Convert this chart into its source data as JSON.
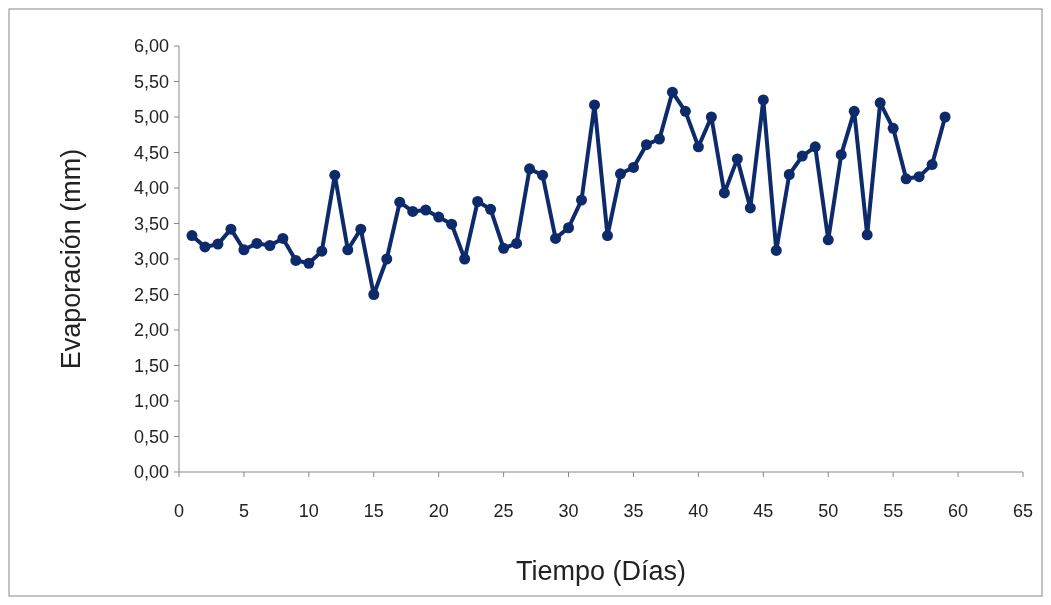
{
  "chart_data": {
    "type": "line",
    "xlabel": "Tiempo (Días)",
    "ylabel": "Evaporación (mm)",
    "x": [
      1,
      2,
      3,
      4,
      5,
      6,
      7,
      8,
      9,
      10,
      11,
      12,
      13,
      14,
      15,
      16,
      17,
      18,
      19,
      20,
      21,
      22,
      23,
      24,
      25,
      26,
      27,
      28,
      29,
      30,
      31,
      32,
      33,
      34,
      35,
      36,
      37,
      38,
      39,
      40,
      41,
      42,
      43,
      44,
      45,
      46,
      47,
      48,
      49,
      50,
      51,
      52,
      53,
      54,
      55,
      56,
      57,
      58,
      59
    ],
    "series": [
      {
        "color": "#0d2a6b",
        "values": [
          3.33,
          3.17,
          3.21,
          3.42,
          3.13,
          3.22,
          3.19,
          3.29,
          2.98,
          2.94,
          3.11,
          4.18,
          3.13,
          3.42,
          2.5,
          3.0,
          3.8,
          3.67,
          3.69,
          3.59,
          3.49,
          3.0,
          3.81,
          3.7,
          3.15,
          3.22,
          4.27,
          4.18,
          3.29,
          3.44,
          3.83,
          5.17,
          3.33,
          4.2,
          4.29,
          4.61,
          4.69,
          5.35,
          5.08,
          4.58,
          5.0,
          3.93,
          4.41,
          3.72,
          5.24,
          3.12,
          4.19,
          4.45,
          4.58,
          3.27,
          4.47,
          5.08,
          3.34,
          5.2,
          4.84,
          4.13,
          4.16,
          4.33,
          5.0
        ]
      }
    ],
    "xlim": [
      0,
      65
    ],
    "xticks": [
      0,
      5,
      10,
      15,
      20,
      25,
      30,
      35,
      40,
      45,
      50,
      55,
      60,
      65
    ],
    "ylim": [
      0,
      6
    ],
    "yticks": [
      {
        "value": 0,
        "label": "0,00"
      },
      {
        "value": 0.5,
        "label": "0,50"
      },
      {
        "value": 1,
        "label": "1,00"
      },
      {
        "value": 1.5,
        "label": "1,50"
      },
      {
        "value": 2,
        "label": "2,00"
      },
      {
        "value": 2.5,
        "label": "2,50"
      },
      {
        "value": 3,
        "label": "3,00"
      },
      {
        "value": 3.5,
        "label": "3,50"
      },
      {
        "value": 4,
        "label": "4,00"
      },
      {
        "value": 4.5,
        "label": "4,50"
      },
      {
        "value": 5,
        "label": "5,00"
      },
      {
        "value": 5.5,
        "label": "5,50"
      },
      {
        "value": 6,
        "label": "6,00"
      }
    ],
    "grid": false,
    "legend": false,
    "marker": "circle",
    "line_style": "solid"
  }
}
